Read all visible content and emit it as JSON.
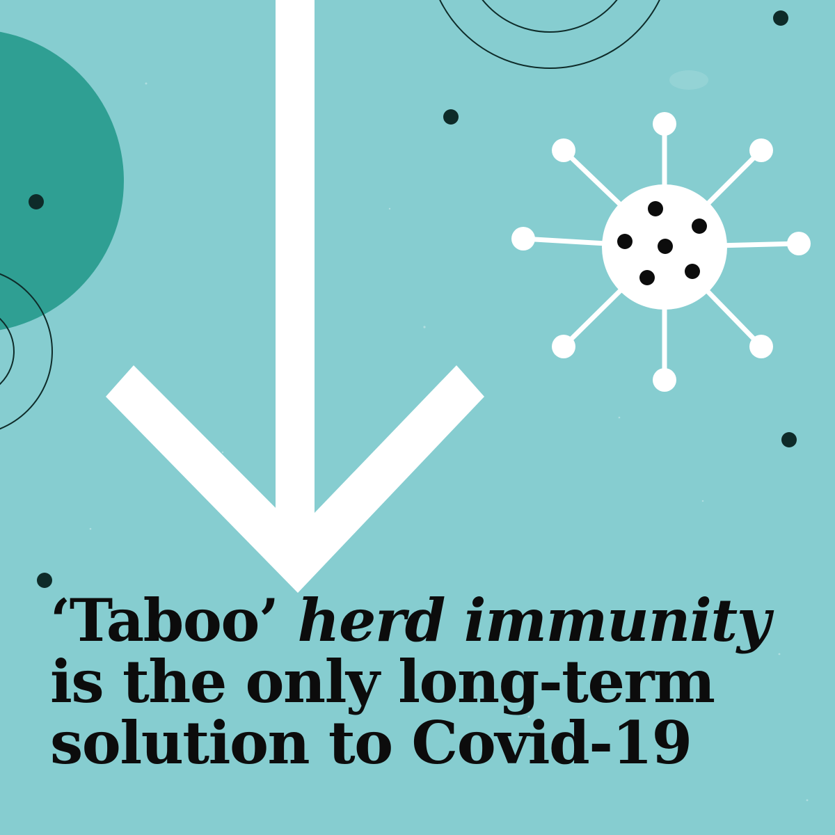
{
  "colors": {
    "background": "#86cdd0",
    "teal_circle": "#2f9f93",
    "white": "#ffffff",
    "ink": "#0c0c0c",
    "dot": "#0e2b29"
  },
  "icons": {
    "arrow": "down-arrow-icon",
    "virus": "virus-icon"
  },
  "headline": {
    "line1_quoted": "‘Taboo’",
    "line1_italic": "herd immunity",
    "line2": "is the only long-term",
    "line3": "solution to Covid-19"
  }
}
